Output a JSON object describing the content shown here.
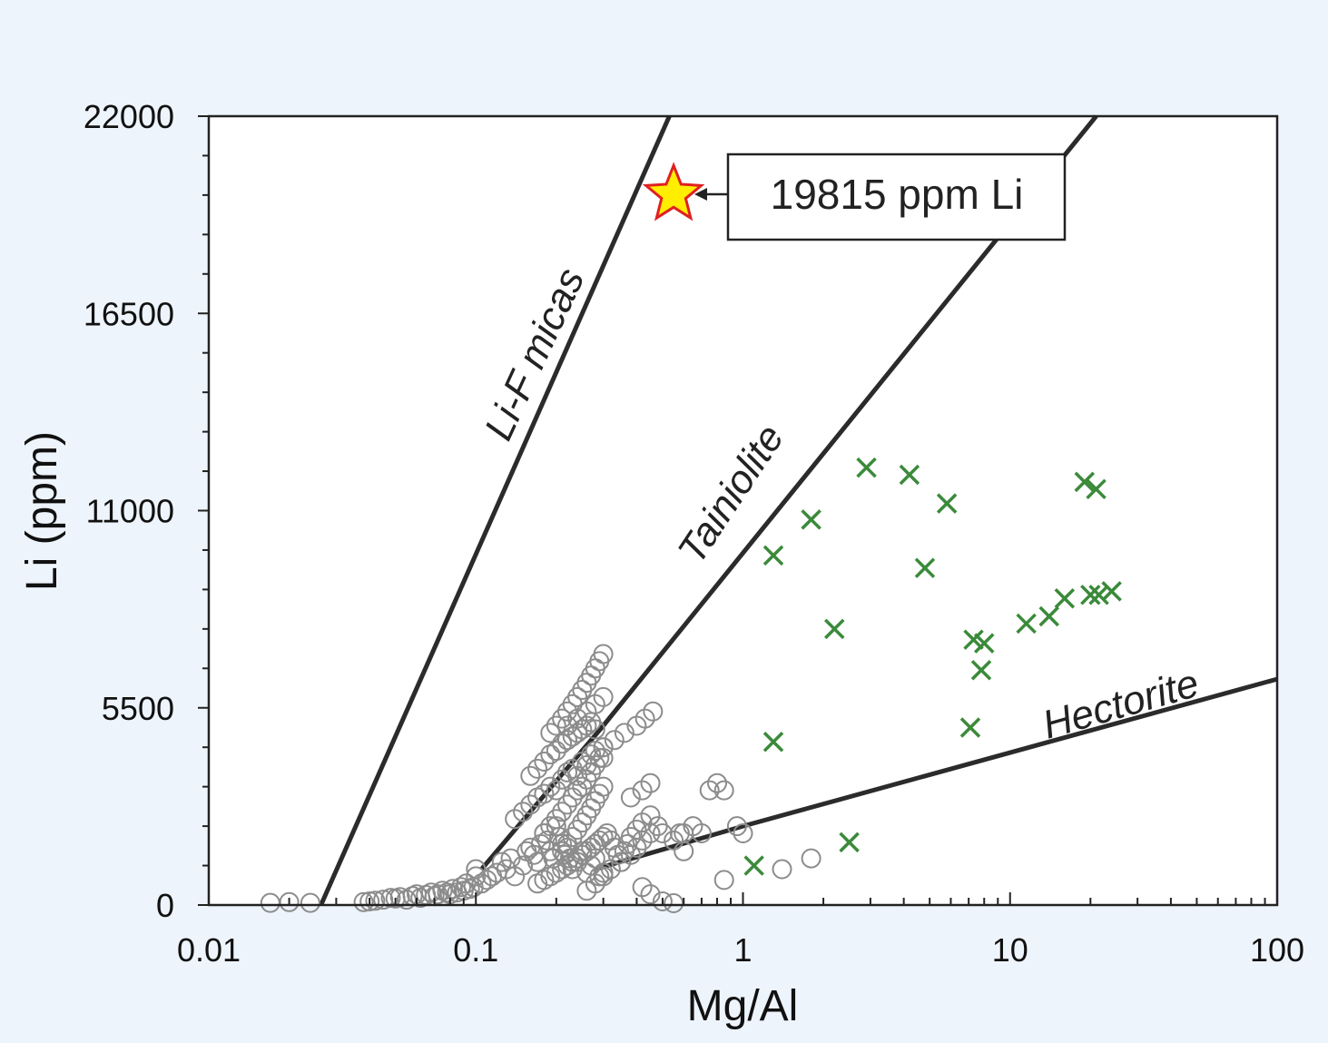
{
  "chart_data": {
    "type": "scatter",
    "xlabel": "Mg/Al",
    "ylabel": "Li (ppm)",
    "x_scale": "log",
    "xlim": [
      0.01,
      100
    ],
    "ylim": [
      0,
      22000
    ],
    "x_tick_labels": [
      "0.01",
      "0.1",
      "1",
      "10",
      "100"
    ],
    "x_tick_values": [
      0.01,
      0.1,
      1,
      10,
      100
    ],
    "y_tick_labels": [
      "0",
      "5500",
      "11000",
      "16500",
      "22000"
    ],
    "y_tick_values": [
      0,
      5500,
      11000,
      16500,
      22000
    ],
    "colors": {
      "background": "#eef4fc",
      "plot_area": "#ffffff",
      "circles": "#8c8c8c",
      "crosses": "#3a8a3a",
      "lines": "#2b2b2b",
      "star_fill": "#ffee00",
      "star_stroke": "#e02020"
    },
    "reference_lines": [
      {
        "label": "Li-F micas",
        "points": [
          [
            0.0263,
            0
          ],
          [
            0.53,
            22000
          ]
        ]
      },
      {
        "label": "Tainiolite",
        "points": [
          [
            0.105,
            1000
          ],
          [
            0.3,
            5000
          ],
          [
            21,
            22000
          ]
        ]
      },
      {
        "label": "Hectorite",
        "points": [
          [
            0.28,
            1000
          ],
          [
            1,
            2200
          ],
          [
            100,
            6300
          ]
        ]
      }
    ],
    "series": [
      {
        "marker": "open-circle",
        "x": [
          0.017,
          0.02,
          0.024,
          0.038,
          0.04,
          0.042,
          0.045,
          0.048,
          0.05,
          0.052,
          0.055,
          0.058,
          0.06,
          0.062,
          0.065,
          0.068,
          0.07,
          0.072,
          0.075,
          0.078,
          0.08,
          0.082,
          0.085,
          0.088,
          0.09,
          0.092,
          0.095,
          0.098,
          0.1,
          0.1,
          0.105,
          0.11,
          0.115,
          0.12,
          0.125,
          0.13,
          0.135,
          0.14,
          0.15,
          0.155,
          0.16,
          0.165,
          0.17,
          0.175,
          0.18,
          0.185,
          0.19,
          0.195,
          0.2,
          0.205,
          0.21,
          0.215,
          0.22,
          0.225,
          0.23,
          0.24,
          0.25,
          0.26,
          0.27,
          0.28,
          0.29,
          0.3,
          0.14,
          0.15,
          0.16,
          0.17,
          0.18,
          0.19,
          0.2,
          0.21,
          0.22,
          0.23,
          0.24,
          0.25,
          0.26,
          0.27,
          0.28,
          0.29,
          0.3,
          0.16,
          0.17,
          0.18,
          0.19,
          0.2,
          0.21,
          0.22,
          0.23,
          0.24,
          0.25,
          0.26,
          0.27,
          0.28,
          0.18,
          0.19,
          0.2,
          0.21,
          0.22,
          0.23,
          0.24,
          0.25,
          0.26,
          0.27,
          0.28,
          0.3,
          0.19,
          0.2,
          0.21,
          0.22,
          0.23,
          0.24,
          0.25,
          0.26,
          0.27,
          0.28,
          0.29,
          0.3,
          0.21,
          0.22,
          0.23,
          0.24,
          0.25,
          0.26,
          0.27,
          0.28,
          0.29,
          0.3,
          0.22,
          0.24,
          0.26,
          0.28,
          0.3,
          0.17,
          0.18,
          0.19,
          0.2,
          0.21,
          0.22,
          0.23,
          0.24,
          0.25,
          0.26,
          0.27,
          0.28,
          0.29,
          0.3,
          0.31,
          0.32,
          0.33,
          0.34,
          0.35,
          0.36,
          0.37,
          0.38,
          0.4,
          0.42,
          0.45,
          0.26,
          0.28,
          0.3,
          0.32,
          0.35,
          0.38,
          0.4,
          0.42,
          0.45,
          0.48,
          0.3,
          0.33,
          0.36,
          0.4,
          0.43,
          0.46,
          0.38,
          0.42,
          0.45,
          0.5,
          0.55,
          0.6,
          0.65,
          0.7,
          0.75,
          0.8,
          0.85,
          0.95,
          1.0,
          0.42,
          0.45,
          0.5,
          0.55,
          0.58,
          0.6,
          0.85,
          1.4,
          1.8
        ],
        "y": [
          60,
          80,
          60,
          80,
          100,
          120,
          150,
          200,
          180,
          220,
          150,
          250,
          300,
          200,
          280,
          350,
          250,
          300,
          400,
          350,
          300,
          450,
          350,
          500,
          400,
          600,
          450,
          500,
          800,
          1000,
          600,
          700,
          800,
          900,
          1200,
          1000,
          1300,
          800,
          1100,
          1500,
          1600,
          1400,
          1200,
          1700,
          2000,
          1800,
          1500,
          1300,
          2200,
          1900,
          1700,
          1400,
          1600,
          1300,
          1000,
          1200,
          1500,
          900,
          1100,
          1300,
          800,
          900,
          2400,
          2600,
          2800,
          3000,
          3100,
          3300,
          3200,
          3500,
          3700,
          3800,
          3600,
          4000,
          3900,
          4200,
          4300,
          4100,
          4400,
          3600,
          3800,
          4000,
          4200,
          4300,
          4500,
          4600,
          4700,
          4800,
          4900,
          5000,
          5100,
          4900,
          2000,
          2200,
          2400,
          2600,
          2800,
          3000,
          3200,
          3300,
          3500,
          3700,
          3900,
          4100,
          4800,
          5000,
          5200,
          5400,
          5600,
          5800,
          6000,
          6200,
          6400,
          6600,
          6800,
          7000,
          1500,
          1700,
          1900,
          2100,
          2300,
          2500,
          2700,
          2900,
          3100,
          3300,
          5000,
          5200,
          5400,
          5600,
          5800,
          600,
          700,
          800,
          900,
          1000,
          1100,
          1200,
          1300,
          1400,
          1500,
          1600,
          1700,
          1800,
          1900,
          2000,
          1800,
          1600,
          1400,
          1200,
          1500,
          1700,
          1900,
          2100,
          2300,
          2500,
          400,
          600,
          800,
          1000,
          1200,
          1400,
          1600,
          1800,
          2000,
          2200,
          4400,
          4600,
          4800,
          5000,
          5200,
          5400,
          3000,
          3200,
          3400,
          2000,
          1800,
          2000,
          2200,
          2000,
          3200,
          3400,
          3200,
          2200,
          2000,
          500,
          300,
          100,
          50,
          2000,
          1500,
          700,
          1000,
          1300
        ]
      },
      {
        "marker": "x",
        "x": [
          1.1,
          1.3,
          1.3,
          1.8,
          2.2,
          2.5,
          2.9,
          4.2,
          4.8,
          5.8,
          7.1,
          7.3,
          7.8,
          8.0,
          11.5,
          14.0,
          16.0,
          19.0,
          20.0,
          21.0,
          21.5,
          24.0
        ],
        "y": [
          1100,
          4550,
          9750,
          10750,
          7700,
          1750,
          12200,
          12000,
          9400,
          11200,
          4950,
          7400,
          6550,
          7300,
          7850,
          8050,
          8550,
          11800,
          8650,
          11600,
          8650,
          8750
        ]
      },
      {
        "marker": "star",
        "x": [
          0.55
        ],
        "y": [
          19815
        ]
      }
    ],
    "annotations": [
      {
        "text": "19815 ppm Li",
        "x": 0.55,
        "y": 19815
      }
    ]
  }
}
